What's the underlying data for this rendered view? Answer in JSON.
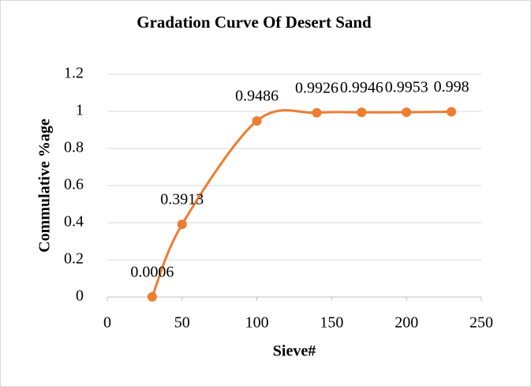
{
  "chart_data": {
    "type": "scatter",
    "title": "Gradation Curve Of Desert Sand",
    "xlabel": "Sieve#",
    "ylabel": "Commulative %age",
    "series": [
      {
        "name": "Desert Sand",
        "color": "#ED7D31",
        "x": [
          30,
          50,
          100,
          140,
          170,
          200,
          230
        ],
        "values": [
          0.0006,
          0.3913,
          0.9486,
          0.9926,
          0.9946,
          0.9953,
          0.998
        ]
      }
    ],
    "xlim": [
      0,
      250
    ],
    "xticks": [
      0,
      50,
      100,
      150,
      200,
      250
    ],
    "ylim": [
      0,
      1.2
    ],
    "yticks": [
      0,
      0.2,
      0.4,
      0.6,
      0.8,
      1,
      1.2
    ],
    "grid": true,
    "smooth": true
  }
}
